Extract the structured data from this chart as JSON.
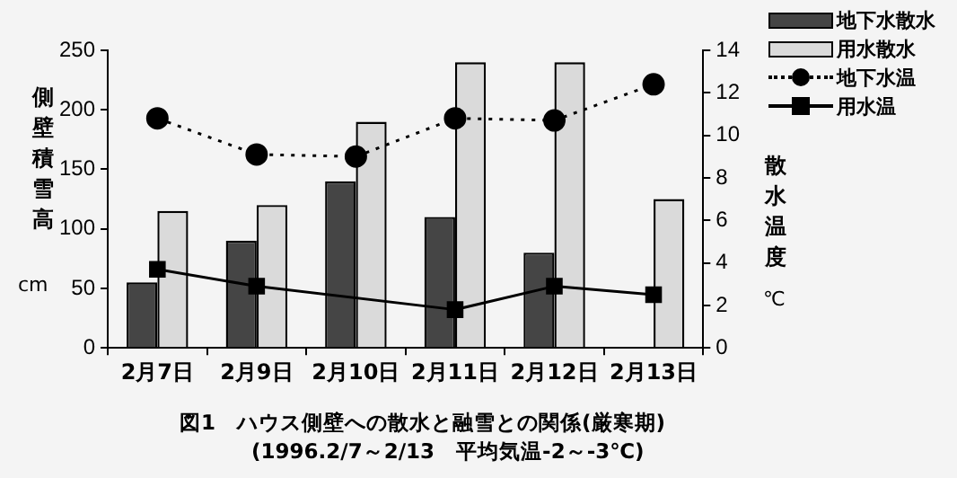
{
  "chart_data": {
    "type": "bar",
    "title": "図1　ハウス側壁への散水と融雪との関係(厳寒期)",
    "subtitle": "(1996.2/7～2/13　平均気温-2～-3℃)",
    "ylabel": "側壁積雪高 cm",
    "y2label": "散水温度 ℃",
    "categories": [
      "2月7日",
      "2月9日",
      "2月10日",
      "2月11日",
      "2月12日",
      "2月13日"
    ],
    "series": [
      {
        "name": "地下水散水",
        "color": "#454545",
        "values": [
          55,
          90,
          140,
          110,
          80,
          null
        ]
      },
      {
        "name": "用水散水",
        "color": "#dadada",
        "values": [
          115,
          120,
          190,
          240,
          240,
          125
        ]
      },
      {
        "name": "地下水温",
        "type": "line",
        "axis": "y2",
        "color": "#000000",
        "marker": "circle",
        "line_style": "dotted",
        "values": [
          10.8,
          9.1,
          9.0,
          10.8,
          10.7,
          12.4
        ]
      },
      {
        "name": "用水温",
        "type": "line",
        "axis": "y2",
        "color": "#000000",
        "marker": "square",
        "line_style": "solid",
        "values": [
          3.7,
          2.9,
          null,
          1.8,
          2.9,
          2.5
        ]
      }
    ],
    "ylim": [
      0,
      250
    ],
    "yticks": [
      0,
      50,
      100,
      150,
      200,
      250
    ],
    "y2lim": [
      0,
      14
    ],
    "y2ticks": [
      0,
      2,
      4,
      6,
      8,
      10,
      12,
      14
    ],
    "grid": false,
    "legend": "top right"
  }
}
